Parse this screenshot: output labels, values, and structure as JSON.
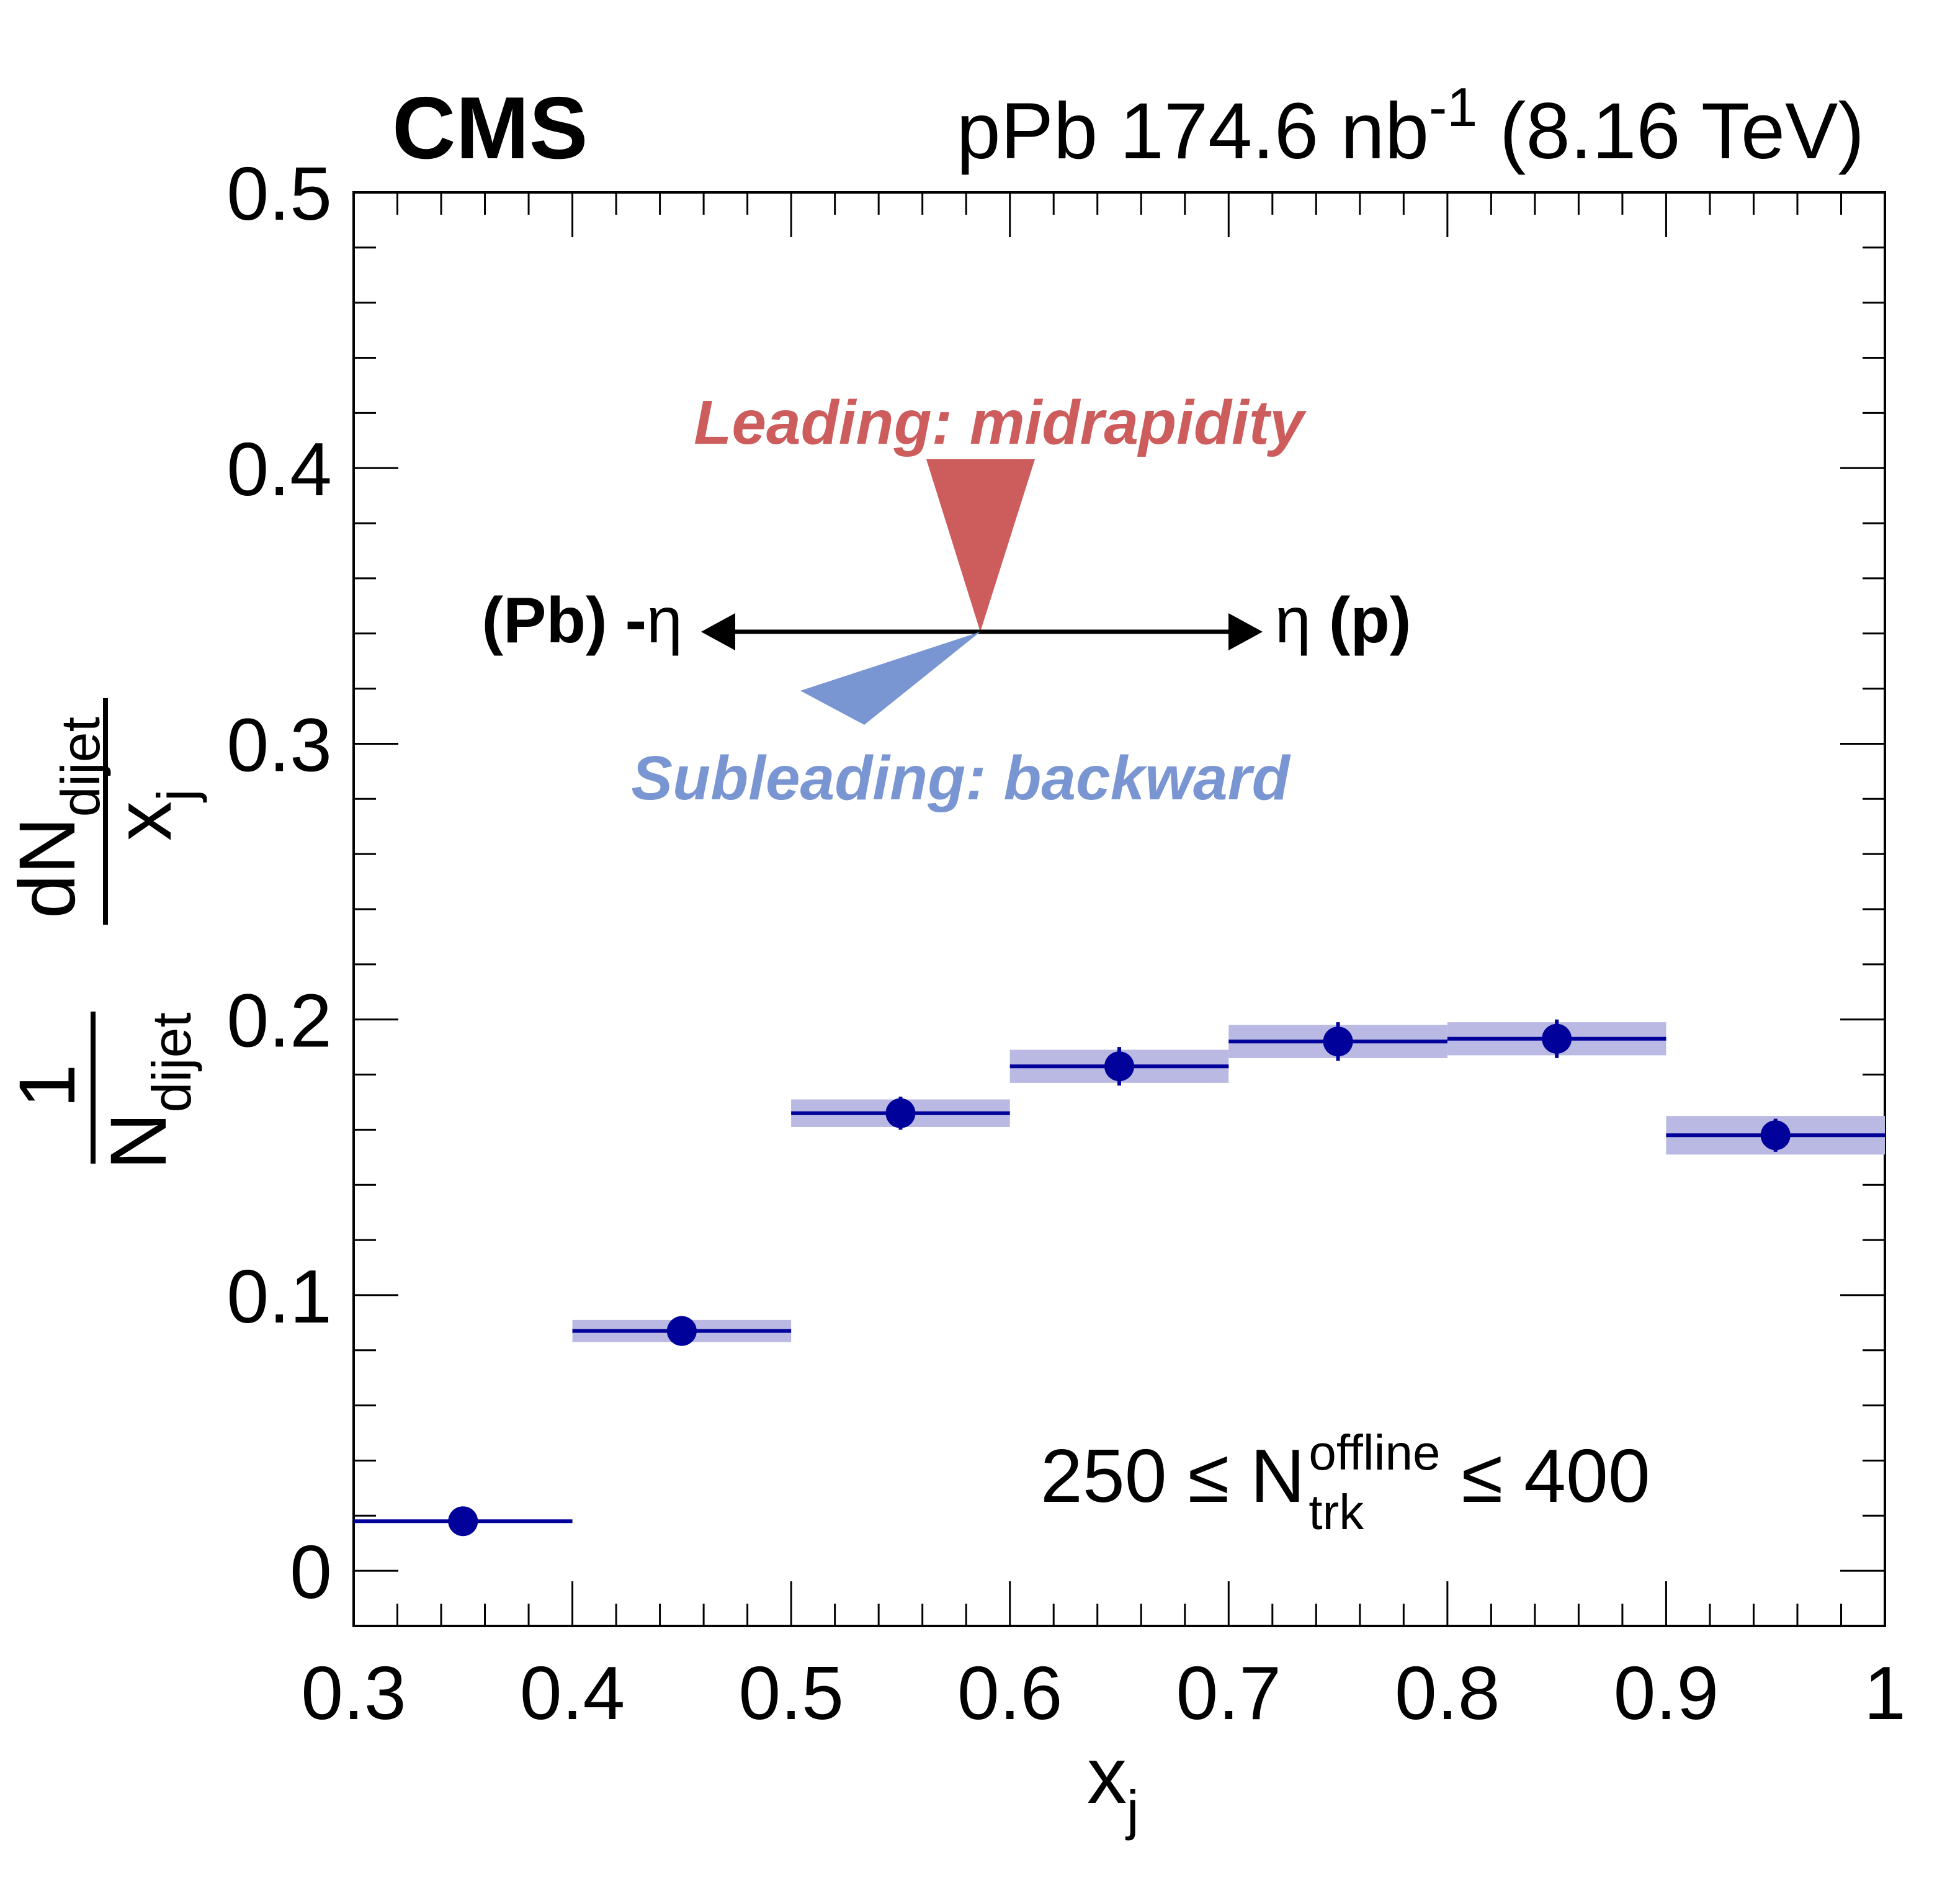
{
  "chart_data": {
    "type": "scatter",
    "experiment_label": "CMS",
    "lumi_label": {
      "prefix": "pPb 174.6 nb",
      "superscript": "-1",
      "suffix": " (8.16 TeV)"
    },
    "xlabel": {
      "main": "x",
      "sub": "j"
    },
    "ylabel": {
      "numerator": "1",
      "denominator_main": "N",
      "denominator_sub": "dijet",
      "deriv_numerator_main": "dN",
      "deriv_numerator_sub": "dijet",
      "deriv_denominator_main": "x",
      "deriv_denominator_sub": "j"
    },
    "xlim": [
      0.3,
      1.0
    ],
    "ylim": [
      -0.02,
      0.5
    ],
    "xticks": [
      0.3,
      0.4,
      0.5,
      0.6,
      0.7,
      0.8,
      0.9,
      1.0
    ],
    "xtick_labels": [
      "0.3",
      "0.4",
      "0.5",
      "0.6",
      "0.7",
      "0.8",
      "0.9",
      "1"
    ],
    "yticks": [
      0,
      0.1,
      0.2,
      0.3,
      0.4,
      0.5
    ],
    "ytick_labels": [
      "0",
      "0.1",
      "0.2",
      "0.3",
      "0.4",
      "0.5"
    ],
    "series": [
      {
        "name": "data",
        "color": "#00009b",
        "band_color": "#b9b9e3",
        "bins": [
          {
            "xlo": 0.3,
            "xhi": 0.4,
            "x": 0.35,
            "y": 0.018,
            "stat_err": 0.002,
            "syst": 0.001
          },
          {
            "xlo": 0.4,
            "xhi": 0.5,
            "x": 0.45,
            "y": 0.087,
            "stat_err": 0.004,
            "syst": 0.004
          },
          {
            "xlo": 0.5,
            "xhi": 0.6,
            "x": 0.55,
            "y": 0.166,
            "stat_err": 0.006,
            "syst": 0.005
          },
          {
            "xlo": 0.6,
            "xhi": 0.7,
            "x": 0.65,
            "y": 0.183,
            "stat_err": 0.007,
            "syst": 0.006
          },
          {
            "xlo": 0.7,
            "xhi": 0.8,
            "x": 0.75,
            "y": 0.192,
            "stat_err": 0.007,
            "syst": 0.006
          },
          {
            "xlo": 0.8,
            "xhi": 0.9,
            "x": 0.85,
            "y": 0.193,
            "stat_err": 0.007,
            "syst": 0.006
          },
          {
            "xlo": 0.9,
            "xhi": 1.0,
            "x": 0.95,
            "y": 0.158,
            "stat_err": 0.006,
            "syst": 0.007
          }
        ]
      }
    ],
    "annotations": {
      "leading": {
        "text": "Leading: midrapidity",
        "color": "#cd5c5c"
      },
      "subleading": {
        "text": "Subleading: backward",
        "color": "#7a96d2"
      },
      "axis_left": "(Pb) -",
      "axis_left_eta": "η",
      "axis_right_eta": "η",
      "axis_right": " (p)",
      "selection": {
        "prefix": "250 ≤ N",
        "sup": "offline",
        "sub": "trk",
        "suffix": " ≤ 400"
      }
    }
  }
}
